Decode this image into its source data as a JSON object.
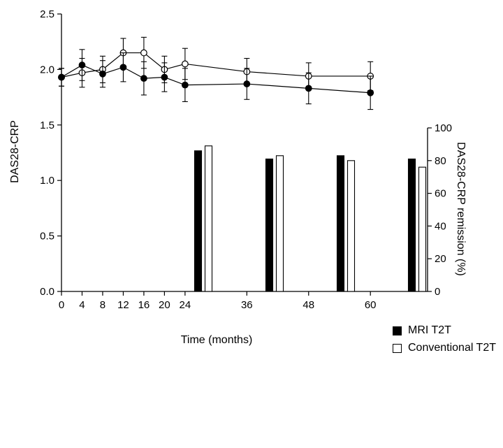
{
  "chart_data": {
    "type": "line+bar",
    "title": "",
    "xlabel": "Time (months)",
    "ylabel_left": "DAS28-CRP",
    "ylabel_right": "DAS28-CRP remission (%)",
    "xlim": [
      0,
      66
    ],
    "ylim_left": [
      0,
      2.5
    ],
    "ylim_right": [
      0,
      100
    ],
    "grid": false,
    "legend_position": "bottom-right",
    "x_ticks": {
      "values": [
        0,
        4,
        8,
        12,
        16,
        20,
        24,
        36,
        48,
        60
      ],
      "labels": [
        "0",
        "4",
        "8",
        "12",
        "16",
        "20",
        "24",
        "36",
        "48",
        "60"
      ]
    },
    "left_ticks": {
      "values": [
        0,
        0.5,
        1.0,
        1.5,
        2.0,
        2.5
      ],
      "labels": [
        "0.0",
        "0.5",
        "1.0",
        "1.5",
        "2.0",
        "2.5"
      ]
    },
    "right_ticks": {
      "values": [
        0,
        20,
        40,
        60,
        80,
        100
      ],
      "labels": [
        "0",
        "20",
        "40",
        "60",
        "80",
        "100"
      ]
    },
    "x_months": [
      0,
      4,
      8,
      12,
      16,
      20,
      24,
      36,
      48,
      60
    ],
    "line_series": [
      {
        "name": "MRI T2T",
        "marker": "filled-circle",
        "color": "#000000",
        "values": [
          1.93,
          2.04,
          1.96,
          2.02,
          1.92,
          1.93,
          1.86,
          1.87,
          1.83,
          1.79
        ],
        "errors": [
          0.08,
          0.14,
          0.12,
          0.13,
          0.15,
          0.13,
          0.15,
          0.14,
          0.14,
          0.15
        ]
      },
      {
        "name": "Conventional T2T",
        "marker": "open-circle",
        "color": "#000000",
        "values": [
          1.93,
          1.97,
          2.0,
          2.15,
          2.15,
          2.0,
          2.05,
          1.98,
          1.94,
          1.94
        ],
        "errors": [
          0.08,
          0.13,
          0.12,
          0.13,
          0.14,
          0.12,
          0.14,
          0.12,
          0.12,
          0.13
        ]
      }
    ],
    "bar_months": [
      24,
      36,
      48,
      60
    ],
    "bar_series": [
      {
        "name": "MRI T2T",
        "fill": "#000000",
        "values": [
          86,
          81,
          83,
          81
        ]
      },
      {
        "name": "Conventional T2T",
        "fill": "#ffffff",
        "values": [
          89,
          83,
          80,
          76
        ]
      }
    ],
    "legend": [
      {
        "label": "MRI T2T",
        "marker": "filled-square"
      },
      {
        "label": "Conventional T2T",
        "marker": "open-square"
      }
    ]
  }
}
